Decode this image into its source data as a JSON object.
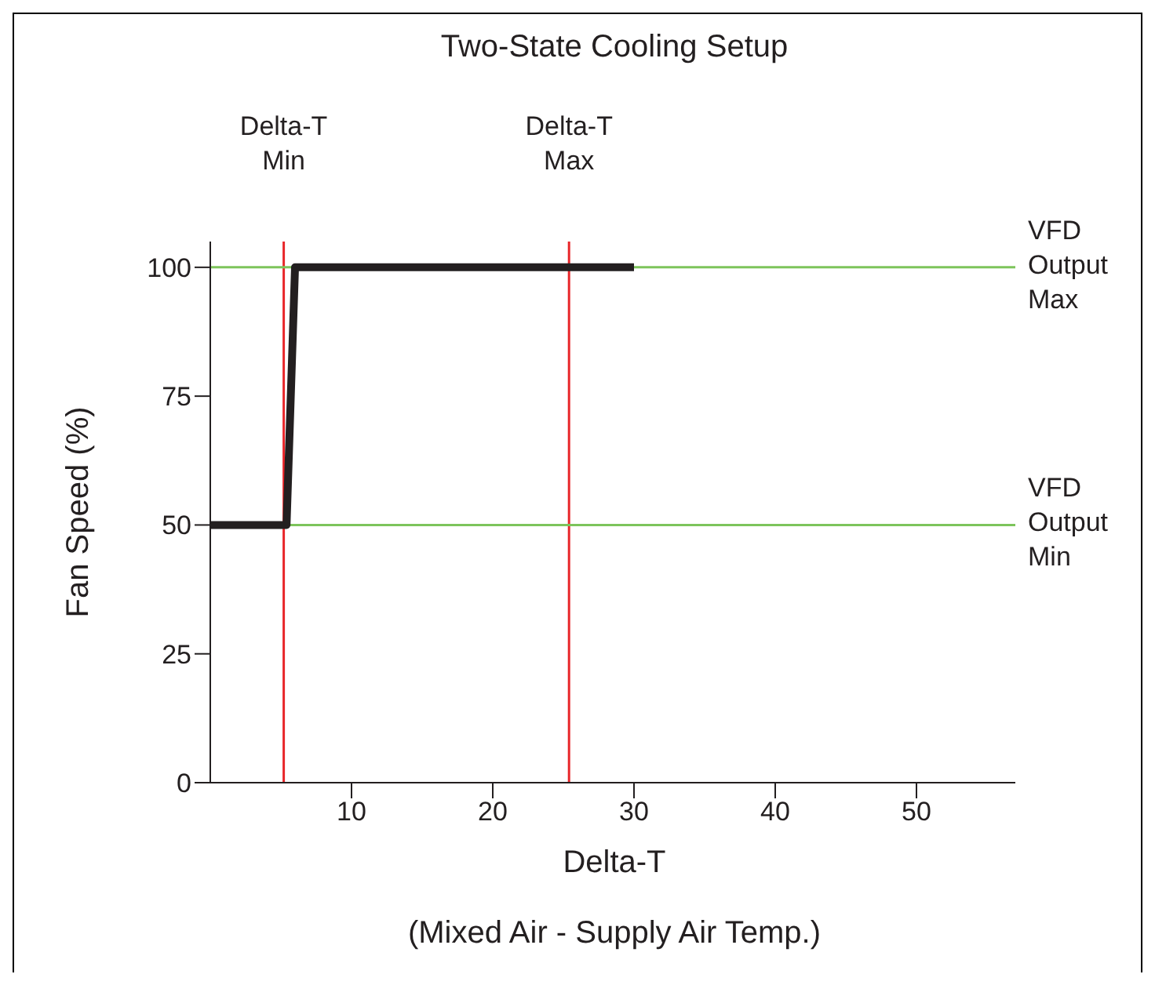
{
  "chart_data": {
    "type": "line",
    "title": "Two-State Cooling Setup",
    "xlabel": "Delta-T",
    "ylabel": "Fan Speed (%)",
    "annotations": [
      "(Mixed Air - Supply Air Temp.)"
    ],
    "series": [
      {
        "color": "#231f20",
        "x": [
          0,
          5.4,
          6,
          30
        ],
        "values": [
          50,
          50,
          100,
          100
        ]
      }
    ],
    "xlim": [
      0,
      57
    ],
    "xticks": [
      10,
      20,
      30,
      40,
      50
    ],
    "ylim": [
      0,
      105
    ],
    "yticks": [
      0,
      25,
      50,
      75,
      100
    ],
    "ref_lines": [
      {
        "axis": "x",
        "value": 5.2,
        "label": "Delta-T Min",
        "color": "#e8262a"
      },
      {
        "axis": "x",
        "value": 25.4,
        "label": "Delta-T Max",
        "color": "#e8262a"
      },
      {
        "axis": "y",
        "value": 100,
        "label": "VFD Output Max",
        "color": "#7dc45b"
      },
      {
        "axis": "y",
        "value": 50,
        "label": "VFD Output Min",
        "color": "#7dc45b"
      }
    ],
    "grid": false,
    "legend": false,
    "marker": "none",
    "line_style": "solid"
  }
}
